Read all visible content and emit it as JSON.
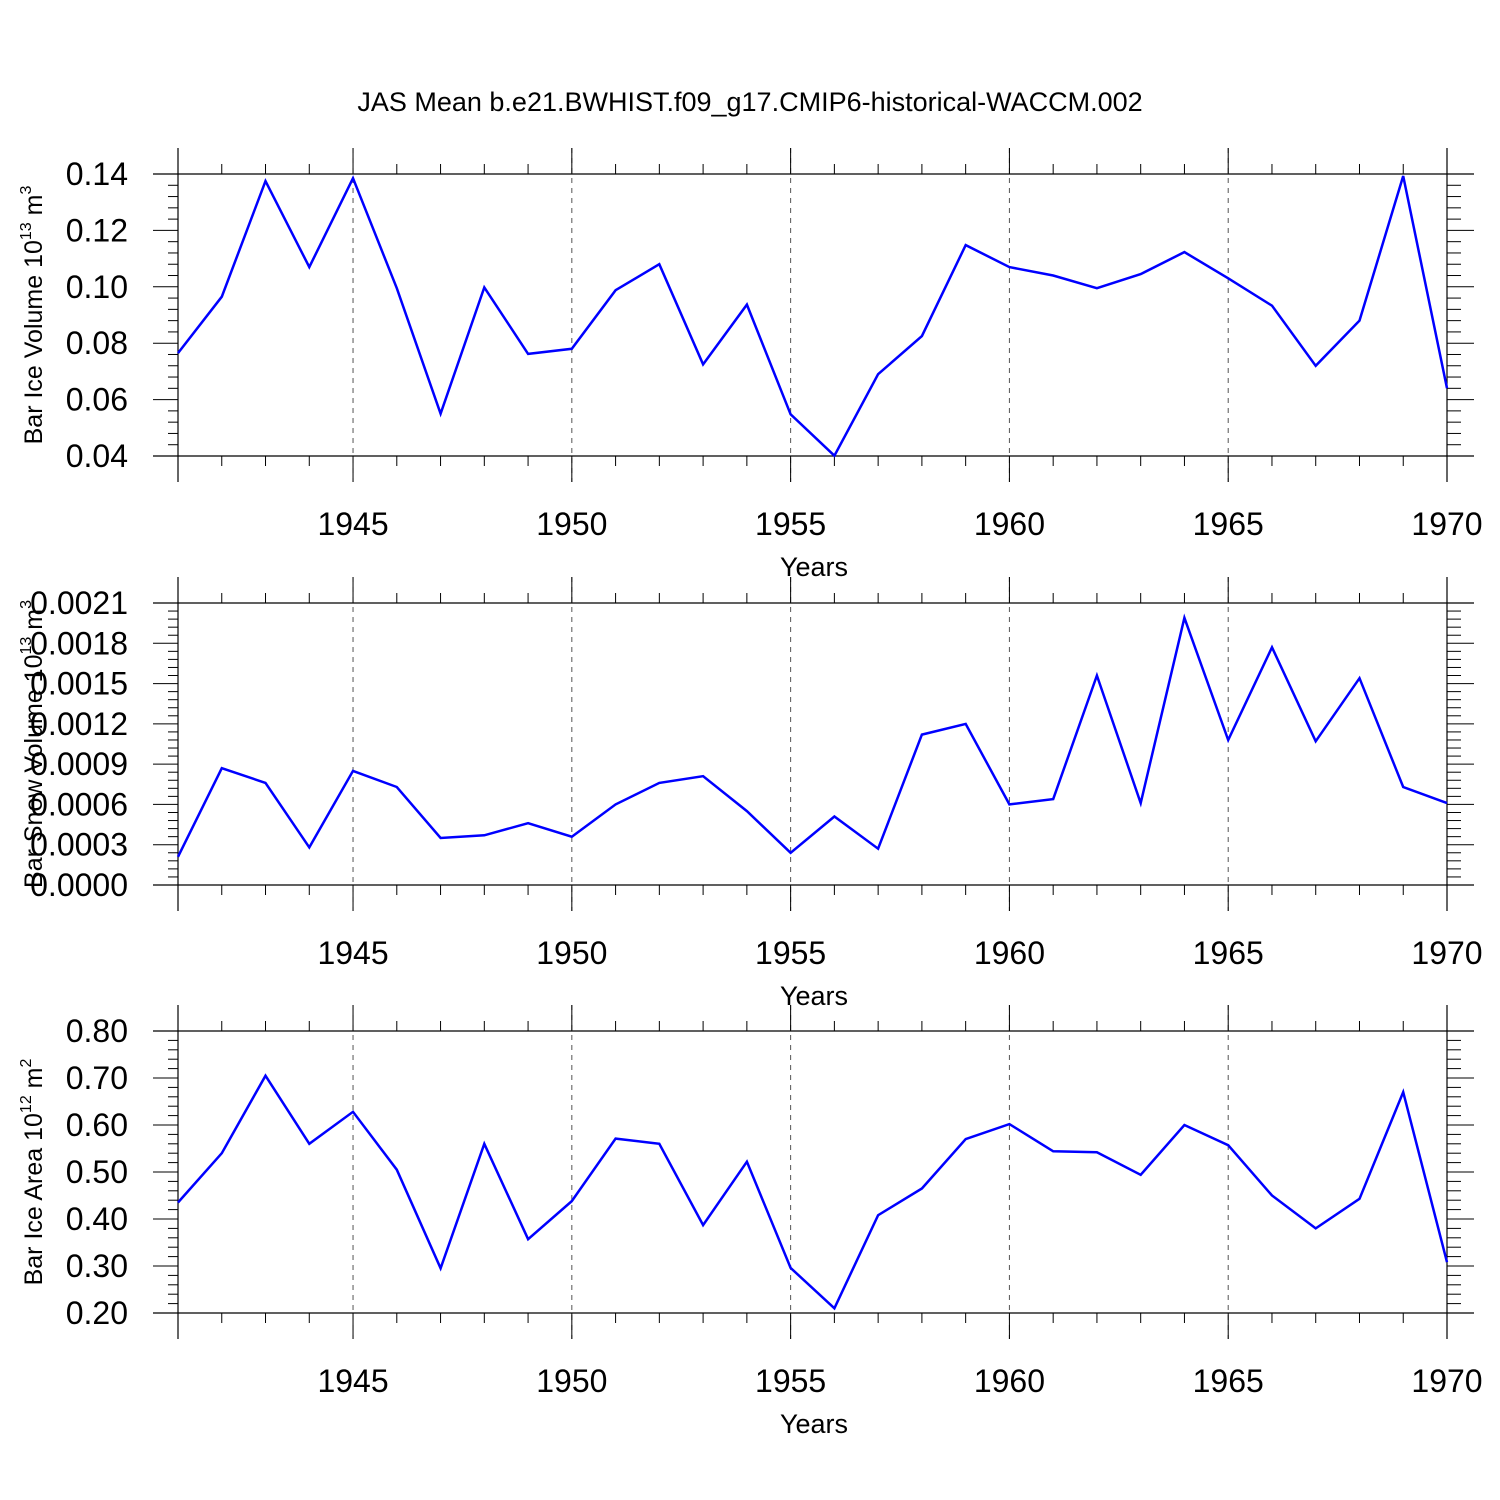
{
  "title": "JAS Mean b.e21.BWHIST.f09_g17.CMIP6-historical-WACCM.002",
  "colors": {
    "line": "#0000ff",
    "axis": "#000000",
    "grid": "#555555"
  },
  "chart_data": [
    {
      "type": "line",
      "ylabel": "Bar Ice Volume 10",
      "ylabel_exponent": "13",
      "ylabel_unit": " m",
      "ylabel_unit_exponent": "3",
      "xlabel": "Years",
      "xlim": [
        1941,
        1970
      ],
      "ylim": [
        0.04,
        0.14
      ],
      "yticks": [
        0.04,
        0.06,
        0.08,
        0.1,
        0.12,
        0.14
      ],
      "ytick_labels": [
        "0.04",
        "0.06",
        "0.08",
        "0.10",
        "0.12",
        "0.14"
      ],
      "xticks": [
        1945,
        1950,
        1955,
        1960,
        1965,
        1970
      ],
      "xtick_labels": [
        "1945",
        "1950",
        "1955",
        "1960",
        "1965",
        "1970"
      ],
      "grid": "vertical dashed at major x ticks",
      "series": [
        {
          "name": "Bar Ice Volume",
          "x": [
            1941,
            1942,
            1943,
            1944,
            1945,
            1946,
            1947,
            1948,
            1949,
            1950,
            1951,
            1952,
            1953,
            1954,
            1955,
            1956,
            1957,
            1958,
            1959,
            1960,
            1961,
            1962,
            1963,
            1964,
            1965,
            1966,
            1967,
            1968,
            1969,
            1970
          ],
          "values": [
            0.0765,
            0.0965,
            0.1375,
            0.107,
            0.1385,
            0.0995,
            0.055,
            0.0998,
            0.0762,
            0.078,
            0.0988,
            0.108,
            0.0725,
            0.0937,
            0.0548,
            0.0401,
            0.069,
            0.0825,
            0.1148,
            0.107,
            0.104,
            0.0995,
            0.1045,
            0.1123,
            0.103,
            0.0933,
            0.072,
            0.088,
            0.1393,
            0.064
          ]
        }
      ]
    },
    {
      "type": "line",
      "ylabel": "Bar Snow Volume 10",
      "ylabel_exponent": "13",
      "ylabel_unit": " m",
      "ylabel_unit_exponent": "3",
      "xlabel": "Years",
      "xlim": [
        1941,
        1970
      ],
      "ylim": [
        0.0,
        0.0021
      ],
      "yticks": [
        0.0,
        0.0003,
        0.0006,
        0.0009,
        0.0012,
        0.0015,
        0.0018,
        0.0021
      ],
      "ytick_labels": [
        "0.0000",
        "0.0003",
        "0.0006",
        "0.0009",
        "0.0012",
        "0.0015",
        "0.0018",
        "0.0021"
      ],
      "xticks": [
        1945,
        1950,
        1955,
        1960,
        1965,
        1970
      ],
      "xtick_labels": [
        "1945",
        "1950",
        "1955",
        "1960",
        "1965",
        "1970"
      ],
      "grid": "vertical dashed at major x ticks",
      "series": [
        {
          "name": "Bar Snow Volume",
          "x": [
            1941,
            1942,
            1943,
            1944,
            1945,
            1946,
            1947,
            1948,
            1949,
            1950,
            1951,
            1952,
            1953,
            1954,
            1955,
            1956,
            1957,
            1958,
            1959,
            1960,
            1961,
            1962,
            1963,
            1964,
            1965,
            1966,
            1967,
            1968,
            1969,
            1970
          ],
          "values": [
            0.00021,
            0.00087,
            0.00076,
            0.00028,
            0.00085,
            0.00073,
            0.00035,
            0.00037,
            0.00046,
            0.00036,
            0.0006,
            0.00076,
            0.00081,
            0.00055,
            0.00024,
            0.00051,
            0.00027,
            0.00112,
            0.0012,
            0.0006,
            0.00064,
            0.00156,
            0.00061,
            0.00199,
            0.00108,
            0.00177,
            0.00107,
            0.00154,
            0.00073,
            0.00061
          ]
        }
      ]
    },
    {
      "type": "line",
      "ylabel": "Bar Ice Area 10",
      "ylabel_exponent": "12",
      "ylabel_unit": " m",
      "ylabel_unit_exponent": "2",
      "xlabel": "Years",
      "xlim": [
        1941,
        1970
      ],
      "ylim": [
        0.2,
        0.8
      ],
      "yticks": [
        0.2,
        0.3,
        0.4,
        0.5,
        0.6,
        0.7,
        0.8
      ],
      "ytick_labels": [
        "0.20",
        "0.30",
        "0.40",
        "0.50",
        "0.60",
        "0.70",
        "0.80"
      ],
      "xticks": [
        1945,
        1950,
        1955,
        1960,
        1965,
        1970
      ],
      "xtick_labels": [
        "1945",
        "1950",
        "1955",
        "1960",
        "1965",
        "1970"
      ],
      "grid": "vertical dashed at major x ticks",
      "series": [
        {
          "name": "Bar Ice Area",
          "x": [
            1941,
            1942,
            1943,
            1944,
            1945,
            1946,
            1947,
            1948,
            1949,
            1950,
            1951,
            1952,
            1953,
            1954,
            1955,
            1956,
            1957,
            1958,
            1959,
            1960,
            1961,
            1962,
            1963,
            1964,
            1965,
            1966,
            1967,
            1968,
            1969,
            1970
          ],
          "values": [
            0.435,
            0.54,
            0.705,
            0.56,
            0.628,
            0.505,
            0.295,
            0.56,
            0.357,
            0.438,
            0.571,
            0.56,
            0.387,
            0.522,
            0.296,
            0.21,
            0.408,
            0.465,
            0.57,
            0.602,
            0.544,
            0.542,
            0.494,
            0.6,
            0.557,
            0.45,
            0.38,
            0.443,
            0.67,
            0.308
          ]
        }
      ]
    }
  ]
}
